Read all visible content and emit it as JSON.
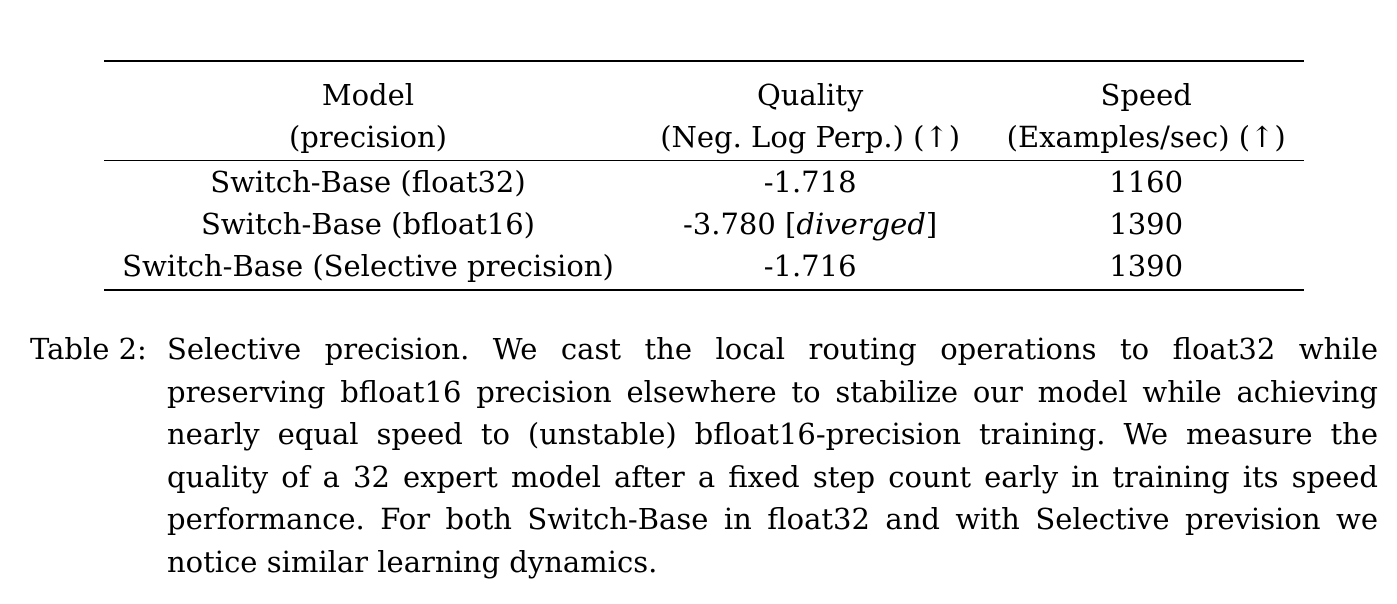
{
  "table": {
    "header": {
      "model_line1": "Model",
      "model_line2": "(precision)",
      "quality_line1": "Quality",
      "quality_line2": "(Neg.  Log Perp.)  (↑)",
      "speed_line1": "Speed",
      "speed_line2": "(Examples/sec)  (↑)"
    },
    "rows": [
      {
        "model": "Switch-Base (float32)",
        "quality": "-1.718",
        "quality_note": "",
        "speed": "1160"
      },
      {
        "model": "Switch-Base (bfloat16)",
        "quality": "-3.780",
        "quality_note": "diverged",
        "speed": "1390"
      },
      {
        "model": "Switch-Base (Selective precision)",
        "quality": "-1.716",
        "quality_note": "",
        "speed": "1390"
      }
    ]
  },
  "caption": {
    "label": "Table 2:",
    "text": "Selective precision. We cast the local routing operations to float32 while preserving bfloat16 precision elsewhere to stabilize our model while achieving nearly equal speed to (unstable) bfloat16-precision training. We measure the quality of a 32 expert model after a fixed step count early in training its speed performance. For both Switch-Base in float32 and with Selective prevision we notice similar learning dynamics."
  }
}
